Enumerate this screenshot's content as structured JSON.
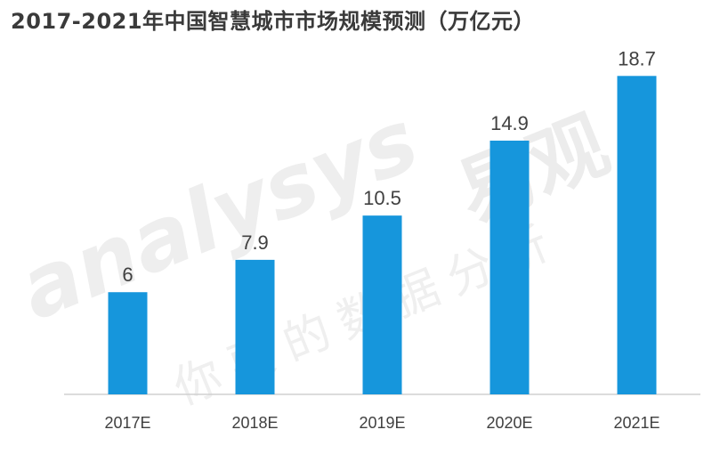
{
  "title": "2017-2021年中国智慧城市市场规模预测（万亿元）",
  "watermark": {
    "brand_latin": "analysys",
    "brand_cn": "易观",
    "slogan": "你要的数据分析"
  },
  "colors": {
    "bar": "#1696dc",
    "text": "#404040",
    "axis": "#d0d0d0"
  },
  "chart_data": {
    "type": "bar",
    "title": "2017-2021年中国智慧城市市场规模预测（万亿元）",
    "categories": [
      "2017E",
      "2018E",
      "2019E",
      "2020E",
      "2021E"
    ],
    "values": [
      6,
      7.9,
      10.5,
      14.9,
      18.7
    ],
    "value_labels": [
      "6",
      "7.9",
      "10.5",
      "14.9",
      "18.7"
    ],
    "ylim": [
      0,
      19.5
    ],
    "grid": false,
    "legend": "none",
    "xlabel": "",
    "ylabel": ""
  }
}
